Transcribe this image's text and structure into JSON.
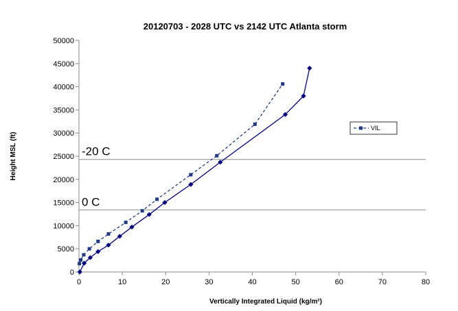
{
  "chart_data": {
    "type": "line",
    "title": "20120703  - 2028 UTC  vs 2142 UTC Atlanta storm",
    "xlabel": "Vertically Integrated Liquid (kg/m²)",
    "ylabel": "Height MSL (ft)",
    "xlim": [
      0,
      80
    ],
    "ylim": [
      0,
      50000
    ],
    "x_ticks": [
      0,
      10,
      20,
      30,
      40,
      50,
      60,
      70,
      80
    ],
    "y_ticks": [
      0,
      5000,
      10000,
      15000,
      20000,
      25000,
      30000,
      35000,
      40000,
      45000,
      50000
    ],
    "grid": false,
    "legend_position": "right",
    "series": [
      {
        "name": "VIL",
        "style": "dashed",
        "marker": "square",
        "color": "#1f3a8a",
        "points": [
          [
            0.1,
            1800
          ],
          [
            0.4,
            2600
          ],
          [
            1.1,
            3700
          ],
          [
            2.4,
            5000
          ],
          [
            4.4,
            6600
          ],
          [
            6.8,
            8200
          ],
          [
            10.8,
            10700
          ],
          [
            14.6,
            13200
          ],
          [
            18.0,
            15700
          ],
          [
            25.8,
            21000
          ],
          [
            31.8,
            25100
          ],
          [
            40.6,
            31900
          ],
          [
            47.0,
            40600
          ]
        ]
      },
      {
        "name": "",
        "style": "solid",
        "marker": "diamond",
        "color": "#00008b",
        "points": [
          [
            0.2,
            0
          ],
          [
            1.2,
            1900
          ],
          [
            2.6,
            3100
          ],
          [
            4.4,
            4400
          ],
          [
            6.8,
            5800
          ],
          [
            9.4,
            7700
          ],
          [
            12.2,
            9700
          ],
          [
            16.2,
            12400
          ],
          [
            19.8,
            15000
          ],
          [
            25.8,
            18900
          ],
          [
            32.6,
            23700
          ],
          [
            47.6,
            34000
          ],
          [
            51.8,
            38000
          ],
          [
            53.2,
            44000
          ]
        ]
      }
    ],
    "reference_lines": [
      {
        "y": 24300,
        "label": "-20 C"
      },
      {
        "y": 13400,
        "label": "0 C"
      }
    ]
  }
}
